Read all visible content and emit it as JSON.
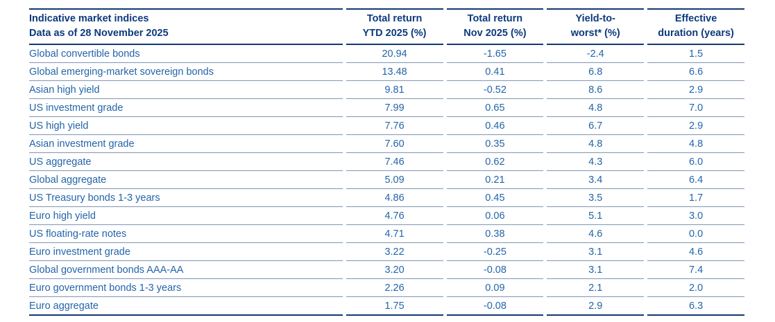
{
  "table": {
    "title_line1": "Indicative market indices",
    "title_line2": "Data as of 28 November 2025",
    "columns": [
      {
        "line1": "Total return",
        "line2": "YTD 2025 (%)"
      },
      {
        "line1": "Total return",
        "line2": "Nov 2025 (%)"
      },
      {
        "line1": "Yield-to-",
        "line2": "worst* (%)"
      },
      {
        "line1": "Effective",
        "line2": "duration (years)"
      }
    ],
    "rows": [
      {
        "label": "Global convertible bonds",
        "ytd": "20.94",
        "nov": "-1.65",
        "ytw": "-2.4",
        "duration": "1.5"
      },
      {
        "label": "Global emerging-market sovereign bonds",
        "ytd": "13.48",
        "nov": "0.41",
        "ytw": "6.8",
        "duration": "6.6"
      },
      {
        "label": "Asian high yield",
        "ytd": "9.81",
        "nov": "-0.52",
        "ytw": "8.6",
        "duration": "2.9"
      },
      {
        "label": "US investment grade",
        "ytd": "7.99",
        "nov": "0.65",
        "ytw": "4.8",
        "duration": "7.0"
      },
      {
        "label": "US high yield",
        "ytd": "7.76",
        "nov": "0.46",
        "ytw": "6.7",
        "duration": "2.9"
      },
      {
        "label": "Asian investment grade",
        "ytd": "7.60",
        "nov": "0.35",
        "ytw": "4.8",
        "duration": "4.8"
      },
      {
        "label": "US aggregate",
        "ytd": "7.46",
        "nov": "0.62",
        "ytw": "4.3",
        "duration": "6.0"
      },
      {
        "label": "Global aggregate",
        "ytd": "5.09",
        "nov": "0.21",
        "ytw": "3.4",
        "duration": "6.4"
      },
      {
        "label": "US Treasury bonds 1-3 years",
        "ytd": "4.86",
        "nov": "0.45",
        "ytw": "3.5",
        "duration": "1.7"
      },
      {
        "label": "Euro high yield",
        "ytd": "4.76",
        "nov": "0.06",
        "ytw": "5.1",
        "duration": "3.0"
      },
      {
        "label": "US floating-rate notes",
        "ytd": "4.71",
        "nov": "0.38",
        "ytw": "4.6",
        "duration": "0.0"
      },
      {
        "label": "Euro investment grade",
        "ytd": "3.22",
        "nov": "-0.25",
        "ytw": "3.1",
        "duration": "4.6"
      },
      {
        "label": "Global government bonds AAA-AA",
        "ytd": "3.20",
        "nov": "-0.08",
        "ytw": "3.1",
        "duration": "7.4"
      },
      {
        "label": "Euro government bonds 1-3 years",
        "ytd": "2.26",
        "nov": "0.09",
        "ytw": "2.1",
        "duration": "2.0"
      },
      {
        "label": "Euro aggregate",
        "ytd": "1.75",
        "nov": "-0.08",
        "ytw": "2.9",
        "duration": "6.3"
      }
    ],
    "colors": {
      "header_text": "#0d3a7d",
      "body_text": "#2364a9",
      "heavy_rule": "#12386f",
      "light_rule": "#7e95b3"
    }
  }
}
